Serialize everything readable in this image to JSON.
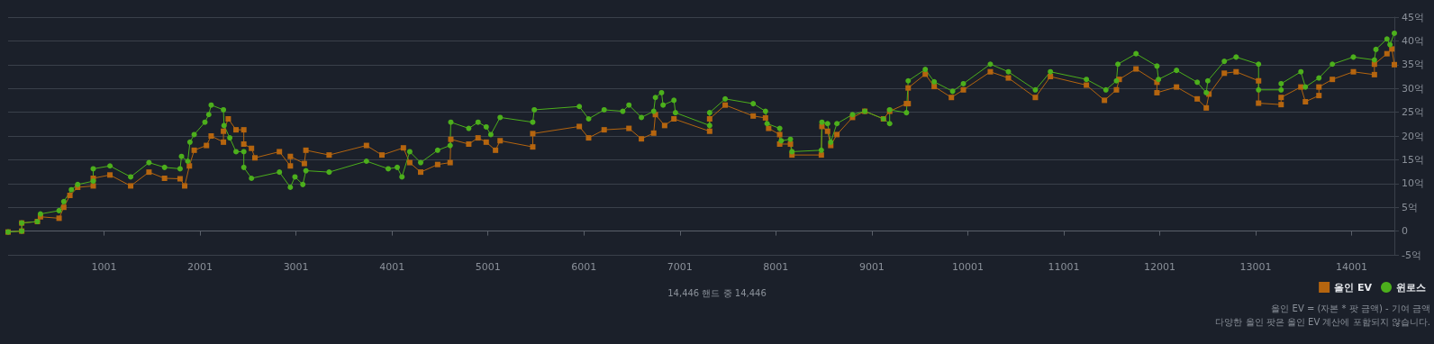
{
  "chart_data": {
    "type": "line",
    "xlim": [
      1,
      14446
    ],
    "xticks": [
      1001,
      2001,
      3001,
      4001,
      5001,
      6001,
      7001,
      8001,
      9001,
      10001,
      11001,
      12001,
      13001,
      14001
    ],
    "ylim": [
      -5,
      45
    ],
    "yticks": [
      {
        "value": -5,
        "label": "-5억"
      },
      {
        "value": 0,
        "label": "0"
      },
      {
        "value": 5,
        "label": "5억"
      },
      {
        "value": 10,
        "label": "10억"
      },
      {
        "value": 15,
        "label": "15억"
      },
      {
        "value": 20,
        "label": "20억"
      },
      {
        "value": 25,
        "label": "25억"
      },
      {
        "value": 30,
        "label": "30억"
      },
      {
        "value": 35,
        "label": "35억"
      },
      {
        "value": 40,
        "label": "40억"
      },
      {
        "value": 45,
        "label": "45억"
      }
    ],
    "grid": "y",
    "legend": "bottom right",
    "line_style": "solid",
    "annotations": [
      "14,446 핸드 중 14,446",
      "올인 EV = (자본 * 팟 금액) - 기여 금액",
      "다양한 올인 팟은 올인 EV 계산에 포함되지 않습니다."
    ],
    "series": [
      {
        "name": "올인 EV",
        "color": "#b5650f",
        "marker": "square",
        "x": [
          1,
          143,
          143,
          306,
          338,
          532,
          581,
          645,
          726,
          888,
          888,
          1062,
          1278,
          1469,
          1631,
          1793,
          1841,
          1890,
          1940,
          2068,
          2117,
          2245,
          2245,
          2295,
          2376,
          2457,
          2457,
          2537,
          2573,
          2828,
          2942,
          2942,
          3088,
          3104,
          3346,
          3735,
          3896,
          4120,
          4186,
          4300,
          4477,
          4607,
          4614,
          4801,
          4898,
          4983,
          5080,
          5128,
          5468,
          5468,
          5953,
          6050,
          6212,
          6470,
          6600,
          6728,
          6746,
          6842,
          6939,
          7311,
          7311,
          7473,
          7765,
          7893,
          7926,
          8041,
          8041,
          8153,
          8169,
          8475,
          8481,
          8540,
          8573,
          8637,
          8800,
          8928,
          9122,
          9187,
          9362,
          9380,
          9380,
          9558,
          9651,
          9830,
          9955,
          10236,
          10424,
          10705,
          10862,
          11237,
          11425,
          11550,
          11579,
          11754,
          11972,
          11972,
          12176,
          12392,
          12486,
          12514,
          12674,
          12797,
          13031,
          13031,
          13266,
          13266,
          13472,
          13519,
          13660,
          13660,
          13800,
          14019,
          14238,
          14238,
          14369,
          14420,
          14446
        ],
        "values": [
          -0.2,
          0,
          1.7,
          2,
          3,
          2.7,
          5,
          7.5,
          9.2,
          9.5,
          11.1,
          11.8,
          9.5,
          12.4,
          11.1,
          11,
          9.5,
          13.7,
          17,
          18,
          20,
          18.7,
          21,
          23.6,
          21.3,
          21.3,
          18.3,
          17.4,
          15.4,
          16.7,
          13.7,
          15.7,
          14.2,
          17,
          16,
          18,
          16,
          17.5,
          14.4,
          12.4,
          14,
          14.4,
          19.3,
          18.3,
          19.6,
          18.7,
          17,
          19,
          17.7,
          20.5,
          22,
          19.6,
          21.3,
          21.6,
          19.4,
          20.6,
          24.5,
          22.2,
          23.6,
          21,
          23.6,
          26.5,
          24.2,
          23.8,
          21.6,
          20.3,
          18.3,
          18.3,
          16,
          16,
          22,
          21,
          18,
          20.3,
          23.9,
          25.2,
          23.6,
          25.2,
          26.8,
          26.8,
          30.1,
          33,
          30.4,
          28.1,
          29.7,
          33.5,
          32.2,
          28.1,
          32.5,
          30.7,
          27.5,
          29.7,
          31.9,
          34.1,
          31.3,
          29.1,
          30.3,
          27.8,
          25.9,
          28.8,
          33.2,
          33.5,
          31.6,
          26.9,
          26.6,
          28.1,
          30.3,
          27.2,
          28.5,
          30.3,
          31.9,
          33.5,
          32.9,
          35.1,
          37.3,
          38.3,
          35
        ]
      },
      {
        "name": "윈로스",
        "color": "#4caf1c",
        "marker": "circle",
        "x": [
          1,
          143,
          143,
          306,
          338,
          532,
          581,
          660,
          726,
          888,
          888,
          1062,
          1278,
          1469,
          1631,
          1793,
          1808,
          1873,
          1896,
          1940,
          2052,
          2092,
          2117,
          2245,
          2251,
          2311,
          2376,
          2457,
          2457,
          2537,
          2828,
          2942,
          2990,
          3072,
          3104,
          3346,
          3735,
          3962,
          4056,
          4105,
          4186,
          4300,
          4477,
          4607,
          4614,
          4801,
          4898,
          4983,
          5031,
          5128,
          5468,
          5484,
          5953,
          6050,
          6212,
          6406,
          6470,
          6600,
          6728,
          6746,
          6810,
          6826,
          6939,
          6955,
          7311,
          7311,
          7473,
          7765,
          7893,
          7910,
          8041,
          8057,
          8153,
          8169,
          8475,
          8481,
          8540,
          8573,
          8637,
          8800,
          8928,
          9122,
          9187,
          9187,
          9362,
          9380,
          9558,
          9651,
          9843,
          9955,
          10236,
          10424,
          10705,
          10862,
          11237,
          11440,
          11550,
          11565,
          11754,
          11972,
          11988,
          12176,
          12392,
          12486,
          12502,
          12674,
          12797,
          13031,
          13031,
          13266,
          13266,
          13472,
          13519,
          13660,
          13800,
          14019,
          14238,
          14254,
          14369,
          14400,
          14446
        ],
        "values": [
          -0.2,
          0,
          1.7,
          2,
          3.6,
          4.3,
          6.2,
          8.7,
          9.8,
          10.5,
          13.1,
          13.7,
          11.4,
          14.4,
          13.4,
          13.1,
          15.7,
          14.7,
          18.7,
          20.3,
          22.9,
          24.5,
          26.5,
          25.5,
          22.2,
          19.6,
          16.7,
          16.7,
          13.4,
          11.1,
          12.4,
          9.2,
          11.4,
          9.8,
          12.7,
          12.4,
          14.7,
          13.1,
          13.4,
          11.4,
          16.7,
          14.4,
          17,
          18,
          22.9,
          21.6,
          22.9,
          21.9,
          20.3,
          23.9,
          22.9,
          25.5,
          26.2,
          23.6,
          25.5,
          25.2,
          26.5,
          23.9,
          25.2,
          28.1,
          29.1,
          26.5,
          27.5,
          24.9,
          22.2,
          24.9,
          27.8,
          26.8,
          25.2,
          22.6,
          21.6,
          19,
          19.3,
          16.7,
          17,
          22.9,
          22.6,
          18.7,
          22.6,
          24.5,
          25.2,
          23.6,
          22.6,
          25.5,
          24.9,
          31.6,
          34,
          31.4,
          29.4,
          31,
          35.1,
          33.5,
          29.7,
          33.5,
          31.9,
          29.7,
          31.6,
          35.1,
          37.3,
          34.7,
          31.9,
          33.8,
          31.3,
          29.1,
          31.6,
          35.7,
          36.6,
          35.1,
          29.7,
          29.7,
          31,
          33.5,
          30.3,
          32.2,
          35.1,
          36.6,
          36,
          38.2,
          40.4,
          39.2,
          41.6
        ]
      }
    ]
  }
}
